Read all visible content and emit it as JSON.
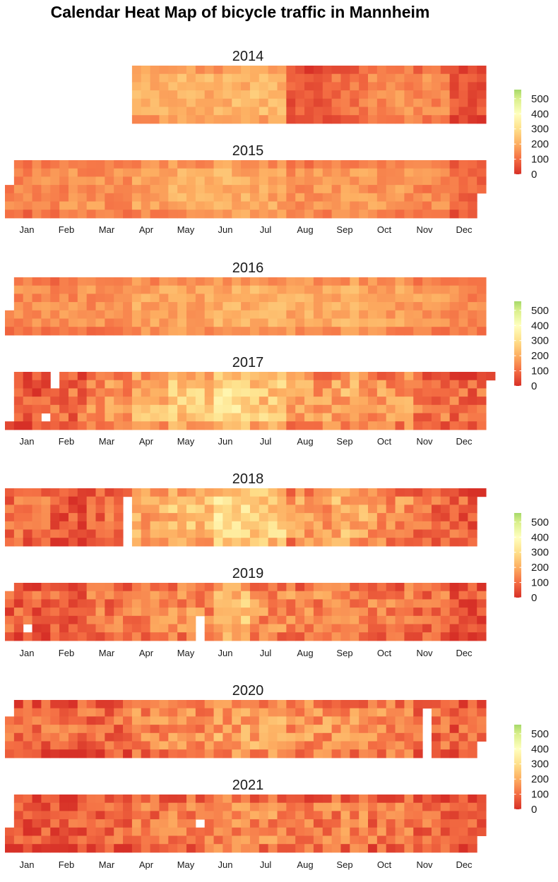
{
  "chart_data": {
    "type": "heatmap",
    "title": "Calendar Heat Map of bicycle traffic in Mannheim",
    "years": [
      "2014",
      "2015",
      "2016",
      "2017",
      "2018",
      "2019",
      "2020",
      "2021"
    ],
    "weekday_rows": 7,
    "months": [
      "Jan",
      "Feb",
      "Mar",
      "Apr",
      "May",
      "Jun",
      "Jul",
      "Aug",
      "Sep",
      "Oct",
      "Nov",
      "Dec"
    ],
    "month_labels_under": [
      "2015",
      "2017",
      "2019",
      "2021"
    ],
    "legend": {
      "ticks": [
        "0",
        "100",
        "200",
        "300",
        "400",
        "500"
      ],
      "tick_values": [
        0,
        100,
        200,
        300,
        400,
        500
      ],
      "range": [
        0,
        560
      ],
      "color_stops": [
        {
          "value": 0,
          "color": "#d73027"
        },
        {
          "value": 100,
          "color": "#f46d43"
        },
        {
          "value": 200,
          "color": "#fdae61"
        },
        {
          "value": 300,
          "color": "#fee08b"
        },
        {
          "value": 400,
          "color": "#ffffbf"
        },
        {
          "value": 500,
          "color": "#d9ef8b"
        },
        {
          "value": 560,
          "color": "#a6d96a"
        }
      ]
    },
    "series": [
      {
        "year": "2014",
        "start_week": 14,
        "start_day": 0,
        "end_week": 52,
        "end_day": 6,
        "monthly_mean": [
          null,
          null,
          null,
          200,
          210,
          215,
          220,
          70,
          110,
          150,
          140,
          60
        ],
        "gaps": []
      },
      {
        "year": "2015",
        "start_week": 0,
        "start_day": 3,
        "end_week": 52,
        "end_day": 3,
        "monthly_mean": [
          140,
          150,
          155,
          185,
          200,
          205,
          190,
          165,
          175,
          165,
          140,
          95
        ],
        "gaps": []
      },
      {
        "year": "2016",
        "start_week": 0,
        "start_day": 4,
        "end_week": 52,
        "end_day": 6,
        "monthly_mean": [
          145,
          150,
          160,
          190,
          195,
          205,
          205,
          200,
          200,
          180,
          170,
          140
        ],
        "gaps": []
      },
      {
        "year": "2017",
        "start_week": 0,
        "start_day": 6,
        "end_week": 53,
        "end_day": 0,
        "monthly_mean": [
          70,
          100,
          150,
          210,
          250,
          300,
          250,
          180,
          200,
          160,
          110,
          90
        ],
        "gaps": [
          [
            5,
            0
          ],
          [
            5,
            1
          ],
          [
            4,
            5
          ]
        ]
      },
      {
        "year": "2018",
        "start_week": 0,
        "start_day": 0,
        "end_week": 52,
        "end_day": 0,
        "monthly_mean": [
          110,
          60,
          90,
          200,
          230,
          300,
          270,
          170,
          210,
          160,
          90,
          80
        ],
        "gaps": [
          [
            13,
            1
          ],
          [
            13,
            2
          ],
          [
            13,
            3
          ],
          [
            13,
            4
          ],
          [
            13,
            5
          ],
          [
            13,
            6
          ]
        ]
      },
      {
        "year": "2019",
        "start_week": 0,
        "start_day": 1,
        "end_week": 52,
        "end_day": 6,
        "monthly_mean": [
          80,
          90,
          110,
          140,
          150,
          230,
          150,
          140,
          150,
          130,
          100,
          70
        ],
        "gaps": [
          [
            2,
            5
          ],
          [
            21,
            4
          ],
          [
            21,
            5
          ],
          [
            21,
            6
          ]
        ]
      },
      {
        "year": "2020",
        "start_week": 0,
        "start_day": 2,
        "end_week": 52,
        "end_day": 4,
        "monthly_mean": [
          90,
          100,
          90,
          140,
          150,
          180,
          180,
          160,
          150,
          140,
          90,
          80
        ],
        "gaps": [
          [
            46,
            1
          ],
          [
            46,
            2
          ],
          [
            46,
            3
          ],
          [
            46,
            4
          ],
          [
            46,
            5
          ],
          [
            46,
            6
          ]
        ]
      },
      {
        "year": "2021",
        "start_week": 0,
        "start_day": 4,
        "end_week": 52,
        "end_day": 4,
        "monthly_mean": [
          60,
          70,
          90,
          110,
          120,
          150,
          140,
          120,
          130,
          110,
          90,
          70
        ],
        "gaps": [
          [
            21,
            3
          ]
        ]
      }
    ]
  }
}
